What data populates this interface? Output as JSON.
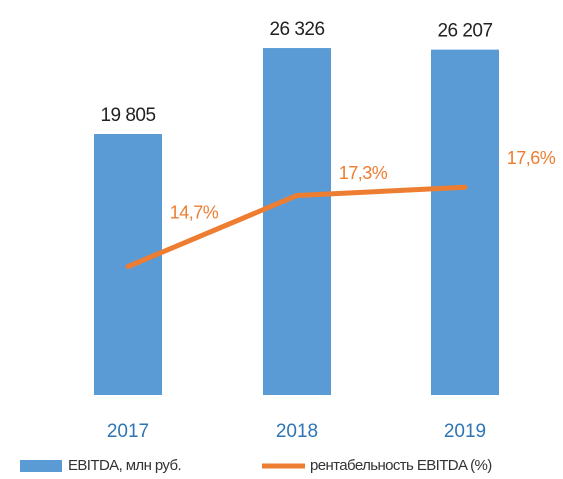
{
  "chart_data": {
    "type": "bar",
    "categories": [
      "2017",
      "2018",
      "2019"
    ],
    "series": [
      {
        "name": "EBITDA, млн руб.",
        "type": "bar",
        "color": "#5b9bd5",
        "values": [
          19805,
          26326,
          26207
        ],
        "value_labels": [
          "19 805",
          "26 326",
          "26 207"
        ]
      },
      {
        "name": "рентабельность EBITDA (%)",
        "type": "line",
        "axis": "y2",
        "color": "#ed7d31",
        "values": [
          14.7,
          17.3,
          17.6
        ],
        "value_labels": [
          "14,7%",
          "17,3%",
          "17,6%"
        ]
      }
    ],
    "ylim": [
      0,
      28000
    ],
    "y2lim": [
      10,
      23.5
    ],
    "legend": "bottom"
  }
}
